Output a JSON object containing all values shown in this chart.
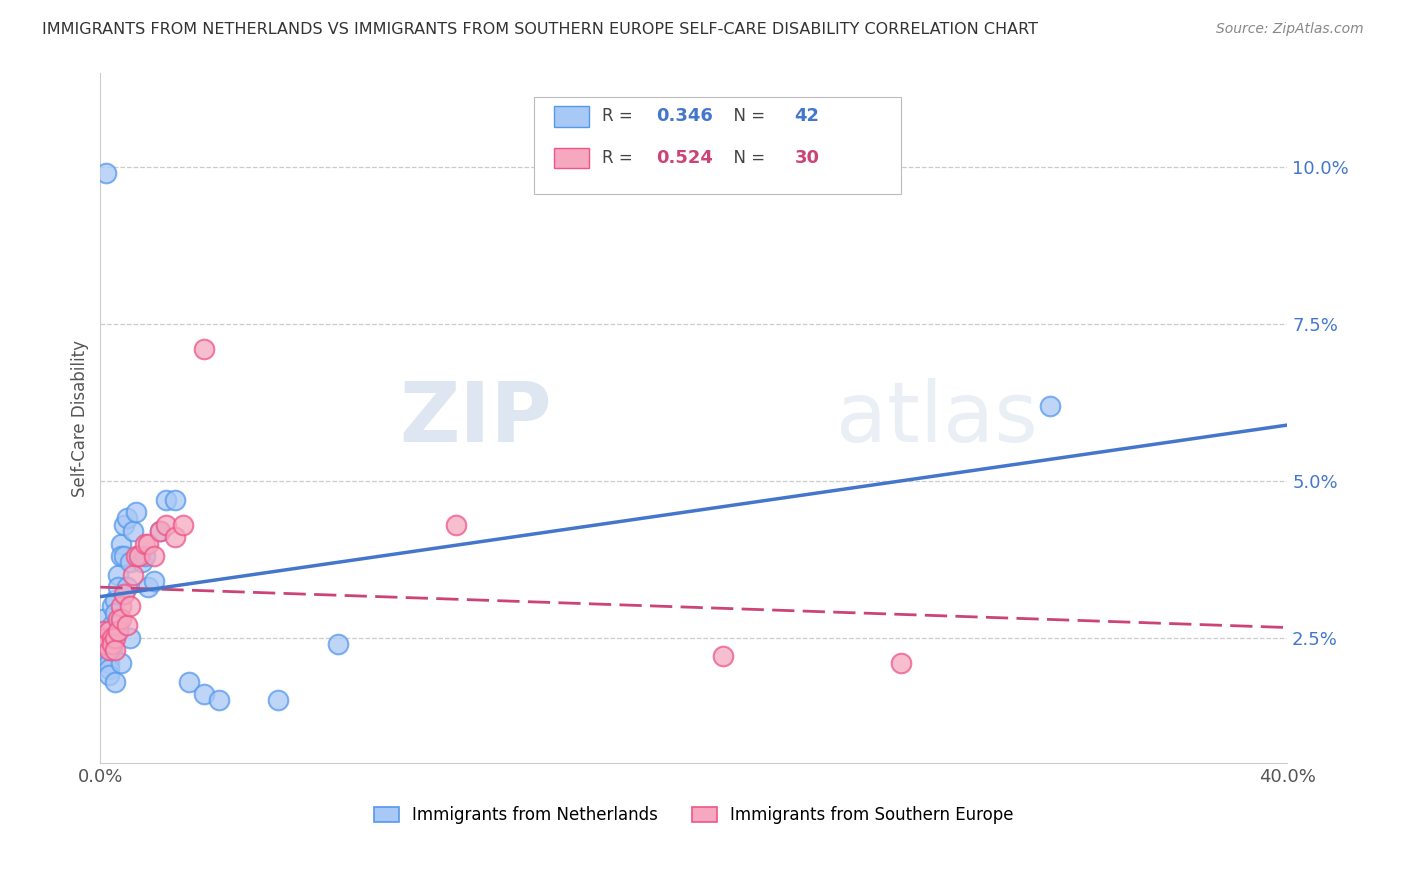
{
  "title": "IMMIGRANTS FROM NETHERLANDS VS IMMIGRANTS FROM SOUTHERN EUROPE SELF-CARE DISABILITY CORRELATION CHART",
  "source": "Source: ZipAtlas.com",
  "ylabel": "Self-Care Disability",
  "y_ticks": [
    0.025,
    0.05,
    0.075,
    0.1
  ],
  "y_tick_labels": [
    "2.5%",
    "5.0%",
    "7.5%",
    "10.0%"
  ],
  "x_ticks": [
    0.0,
    0.1,
    0.2,
    0.3,
    0.4
  ],
  "x_tick_labels": [
    "0.0%",
    "",
    "",
    "",
    "40.0%"
  ],
  "xlim": [
    0.0,
    0.4
  ],
  "ylim": [
    0.005,
    0.115
  ],
  "blue_R": 0.346,
  "blue_N": 42,
  "pink_R": 0.524,
  "pink_N": 30,
  "blue_color": "#a8c8f5",
  "pink_color": "#f5a8c0",
  "blue_edge_color": "#5599ee",
  "pink_edge_color": "#ee5588",
  "blue_line_color": "#4477cc",
  "pink_line_color": "#cc4477",
  "legend_blue_label": "Immigrants from Netherlands",
  "legend_pink_label": "Immigrants from Southern Europe",
  "blue_x": [
    0.001,
    0.002,
    0.002,
    0.003,
    0.003,
    0.003,
    0.003,
    0.004,
    0.004,
    0.004,
    0.005,
    0.005,
    0.005,
    0.006,
    0.006,
    0.006,
    0.007,
    0.007,
    0.007,
    0.008,
    0.008,
    0.009,
    0.009,
    0.01,
    0.01,
    0.011,
    0.012,
    0.013,
    0.014,
    0.015,
    0.016,
    0.018,
    0.02,
    0.022,
    0.025,
    0.03,
    0.035,
    0.04,
    0.06,
    0.08,
    0.32,
    0.002
  ],
  "blue_y": [
    0.028,
    0.026,
    0.024,
    0.022,
    0.021,
    0.02,
    0.019,
    0.03,
    0.027,
    0.023,
    0.031,
    0.029,
    0.018,
    0.035,
    0.033,
    0.027,
    0.04,
    0.038,
    0.021,
    0.043,
    0.038,
    0.044,
    0.033,
    0.037,
    0.025,
    0.042,
    0.045,
    0.038,
    0.037,
    0.038,
    0.033,
    0.034,
    0.042,
    0.047,
    0.047,
    0.018,
    0.016,
    0.015,
    0.015,
    0.024,
    0.062,
    0.099
  ],
  "pink_x": [
    0.001,
    0.002,
    0.002,
    0.003,
    0.003,
    0.004,
    0.004,
    0.005,
    0.005,
    0.006,
    0.006,
    0.007,
    0.007,
    0.008,
    0.009,
    0.01,
    0.011,
    0.012,
    0.013,
    0.015,
    0.016,
    0.018,
    0.02,
    0.022,
    0.025,
    0.028,
    0.035,
    0.12,
    0.21,
    0.27
  ],
  "pink_y": [
    0.026,
    0.025,
    0.024,
    0.023,
    0.026,
    0.025,
    0.024,
    0.025,
    0.023,
    0.028,
    0.026,
    0.03,
    0.028,
    0.032,
    0.027,
    0.03,
    0.035,
    0.038,
    0.038,
    0.04,
    0.04,
    0.038,
    0.042,
    0.043,
    0.041,
    0.043,
    0.071,
    0.043,
    0.022,
    0.021
  ],
  "watermark_zip": "ZIP",
  "watermark_atlas": "atlas",
  "background_color": "#ffffff",
  "grid_color": "#cccccc"
}
